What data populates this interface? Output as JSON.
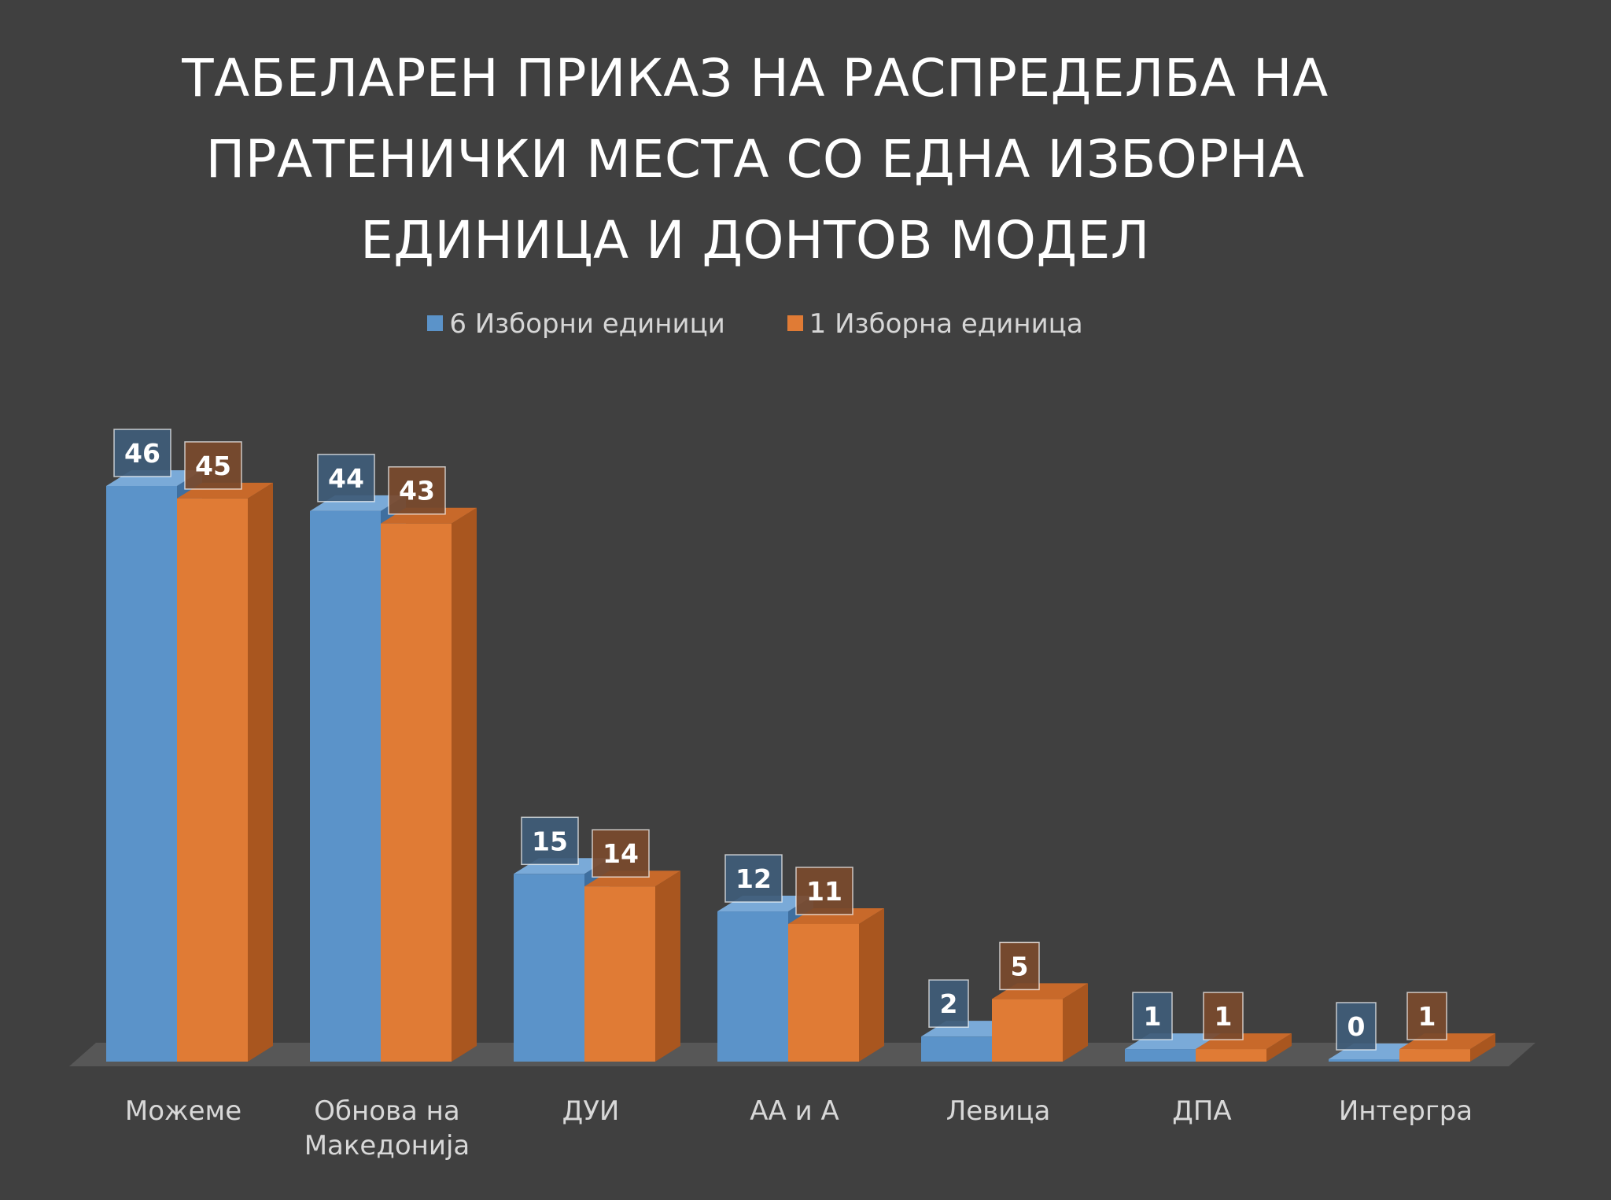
{
  "chart_data": {
    "type": "bar",
    "title_lines": [
      "ТАБЕЛАРЕН ПРИКАЗ НА РАСПРЕДЕЛБА НА",
      "ПРАТЕНИЧКИ МЕСТА СО ЕДНА ИЗБОРНА",
      "ЕДИНИЦА И ДОНТОВ МОДЕЛ"
    ],
    "categories": [
      [
        "Можеме"
      ],
      [
        "Обнова на",
        "Македонија"
      ],
      [
        "ДУИ"
      ],
      [
        "АА и А"
      ],
      [
        "Левица"
      ],
      [
        "ДПА"
      ],
      [
        "Интергра"
      ]
    ],
    "series": [
      {
        "name": "6 Изборни единици",
        "values": [
          46,
          44,
          15,
          12,
          2,
          1,
          0
        ],
        "color": "#5b93c9",
        "side_color": "#3f6f9f",
        "top_color": "#7aaad8",
        "label_bg": "#3f5c78"
      },
      {
        "name": "1 Изборна единица",
        "values": [
          45,
          43,
          14,
          11,
          5,
          1,
          1
        ],
        "color": "#e07b35",
        "side_color": "#a9561f",
        "top_color": "#c8692a",
        "label_bg": "#7a4a2d"
      }
    ],
    "ylim": [
      0,
      46
    ],
    "legend_position": "top-center",
    "grid": false,
    "xlabel": "",
    "ylabel": ""
  }
}
